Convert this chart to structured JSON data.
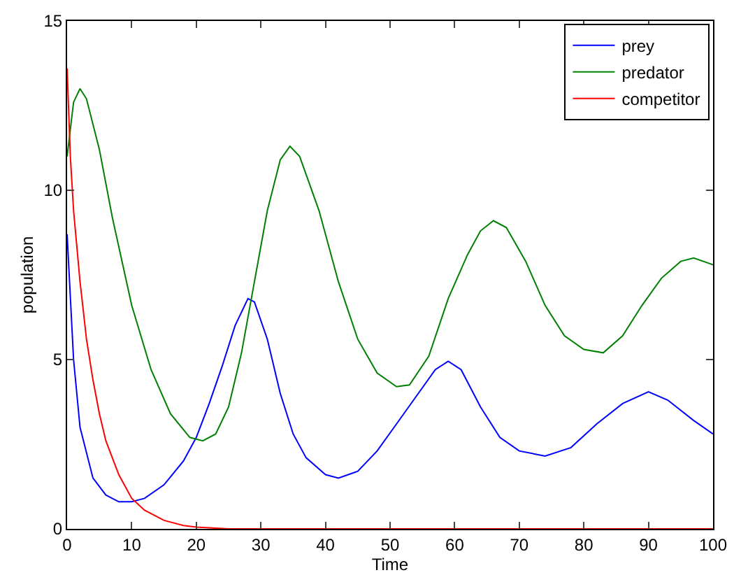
{
  "chart_data": {
    "type": "line",
    "xlabel": "Time",
    "ylabel": "population",
    "xlim": [
      0,
      100
    ],
    "ylim": [
      0,
      15
    ],
    "xticks": [
      0,
      10,
      20,
      30,
      40,
      50,
      60,
      70,
      80,
      90,
      100
    ],
    "yticks": [
      0,
      5,
      10,
      15
    ],
    "legend": "top right",
    "marker": "none",
    "line_style": "solid",
    "series": [
      {
        "name": "prey",
        "color": "#0000ff",
        "x": [
          0,
          1,
          2,
          4,
          6,
          8,
          10,
          12,
          15,
          18,
          20,
          22,
          24,
          26,
          28,
          29,
          31,
          33,
          35,
          37,
          40,
          42,
          45,
          48,
          51,
          54,
          57,
          59,
          61,
          64,
          67,
          70,
          74,
          78,
          82,
          86,
          90,
          93,
          97,
          100
        ],
        "values": [
          8.7,
          5,
          3,
          1.5,
          1.0,
          0.8,
          0.8,
          0.9,
          1.3,
          2.0,
          2.7,
          3.7,
          4.8,
          6.0,
          6.8,
          6.7,
          5.6,
          4.0,
          2.8,
          2.1,
          1.6,
          1.5,
          1.7,
          2.3,
          3.1,
          3.9,
          4.7,
          4.95,
          4.7,
          3.6,
          2.7,
          2.3,
          2.15,
          2.4,
          3.1,
          3.7,
          4.05,
          3.8,
          3.2,
          2.8
        ]
      },
      {
        "name": "predator",
        "color": "#008000",
        "x": [
          0,
          1,
          2,
          3,
          5,
          7,
          10,
          13,
          16,
          19,
          21,
          23,
          25,
          27,
          29,
          31,
          33,
          34.5,
          36,
          39,
          42,
          45,
          48,
          51,
          53,
          56,
          59,
          62,
          64,
          66,
          68,
          71,
          74,
          77,
          80,
          83,
          86,
          89,
          92,
          95,
          97,
          100
        ],
        "values": [
          11,
          12.6,
          13.0,
          12.7,
          11.2,
          9.2,
          6.6,
          4.7,
          3.4,
          2.7,
          2.6,
          2.8,
          3.6,
          5.2,
          7.3,
          9.4,
          10.9,
          11.3,
          11.0,
          9.4,
          7.3,
          5.6,
          4.6,
          4.2,
          4.25,
          5.1,
          6.8,
          8.1,
          8.8,
          9.1,
          8.9,
          7.9,
          6.6,
          5.7,
          5.3,
          5.2,
          5.7,
          6.6,
          7.4,
          7.9,
          8.0,
          7.8
        ]
      },
      {
        "name": "competitor",
        "color": "#ff0000",
        "x": [
          0,
          0.5,
          1,
          2,
          3,
          4,
          5,
          6,
          8,
          10,
          12,
          15,
          18,
          20,
          25,
          100
        ],
        "values": [
          13.6,
          11,
          9.4,
          7.3,
          5.6,
          4.4,
          3.4,
          2.6,
          1.6,
          0.9,
          0.55,
          0.25,
          0.1,
          0.05,
          0.0,
          0.0
        ]
      }
    ]
  }
}
